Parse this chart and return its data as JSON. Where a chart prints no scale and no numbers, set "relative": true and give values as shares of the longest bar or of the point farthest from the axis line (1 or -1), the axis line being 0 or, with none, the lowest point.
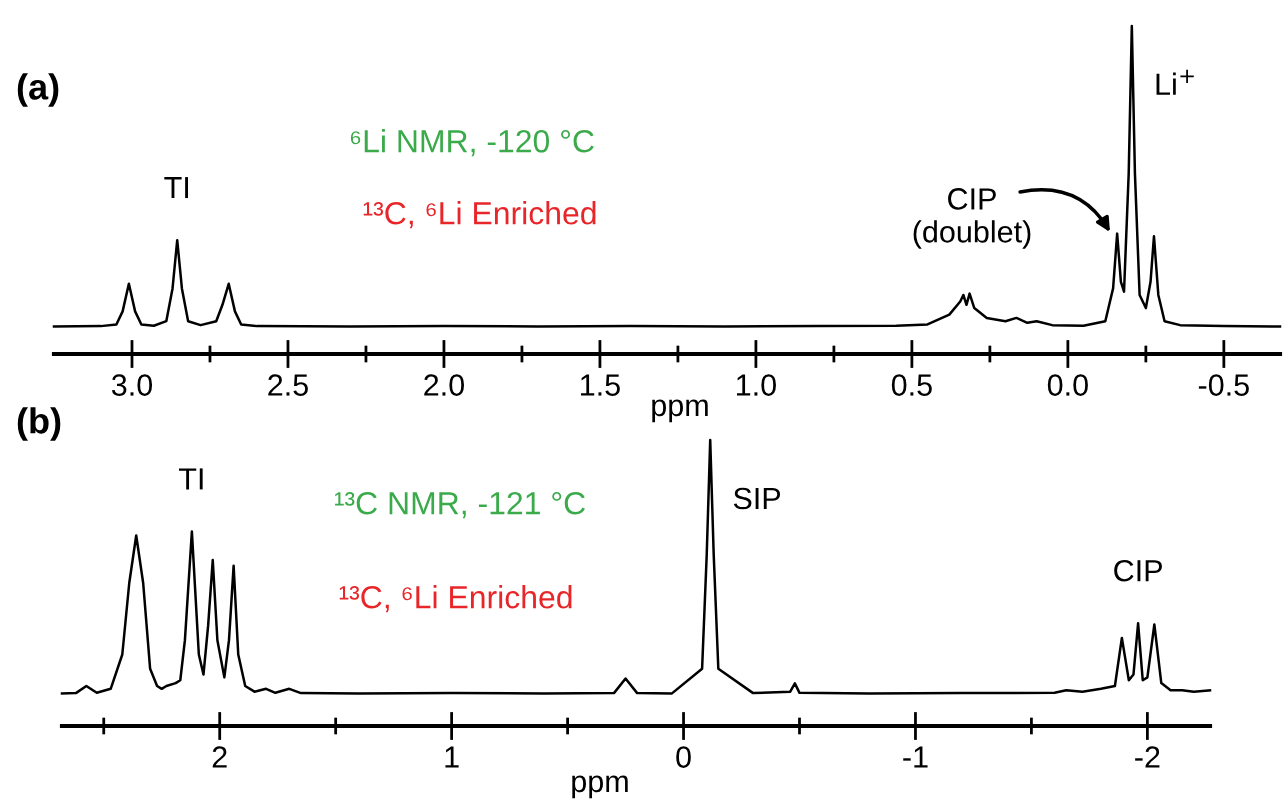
{
  "chart_data": [
    {
      "type": "line",
      "title": "(a)",
      "xlabel": "ppm",
      "relative": true,
      "tick_labels": "x",
      "grid": false,
      "legend": false,
      "xlim": [
        3.25,
        -0.68
      ],
      "xticks": [
        {
          "value": 3,
          "label": "3.0"
        },
        {
          "value": 2.75,
          "label": null
        },
        2.5,
        {
          "value": 2.25,
          "label": null
        },
        {
          "value": 2,
          "label": "2.0"
        },
        {
          "value": 1.75,
          "label": null
        },
        1.5,
        {
          "value": 1.25,
          "label": null
        },
        {
          "value": 1,
          "label": "1.0"
        },
        {
          "value": 0.75,
          "label": null
        },
        0.5,
        {
          "value": 0.25,
          "label": null
        },
        {
          "value": 0,
          "label": "0.0"
        },
        {
          "value": -0.25,
          "label": null
        },
        -0.5
      ],
      "annotations": [
        "⁶Li NMR, -120 °C",
        "¹³C, ⁶Li Enriched",
        {
          "text": "TI",
          "x": 2.855,
          "y": 0.347
        },
        "CIP\n(doublet)",
        {
          "text": "Li$^{+}$",
          "x": -0.205,
          "y": 1.0
        }
      ],
      "series": [
        {
          "color": "#000000",
          "x": [
            3.25,
            3.1,
            3.05,
            3.03,
            3.01,
            2.99,
            2.97,
            2.93,
            2.89,
            2.87,
            2.855,
            2.84,
            2.82,
            2.78,
            2.73,
            2.71,
            2.69,
            2.67,
            2.65,
            2.6,
            2.3,
            2.0,
            1.7,
            1.4,
            1.1,
            0.8,
            0.55,
            0.45,
            0.38,
            0.345,
            0.335,
            0.325,
            0.315,
            0.3,
            0.26,
            0.2,
            0.165,
            0.13,
            0.1,
            0.05,
            -0.05,
            -0.12,
            -0.145,
            -0.158,
            -0.17,
            -0.18,
            -0.195,
            -0.205,
            -0.215,
            -0.23,
            -0.25,
            -0.265,
            -0.276,
            -0.29,
            -0.31,
            -0.36,
            -0.5,
            -0.68
          ],
          "values": [
            0.084,
            0.085,
            0.09,
            0.13,
            0.214,
            0.13,
            0.09,
            0.086,
            0.1,
            0.2,
            0.347,
            0.2,
            0.1,
            0.088,
            0.1,
            0.15,
            0.214,
            0.13,
            0.09,
            0.085,
            0.084,
            0.085,
            0.084,
            0.085,
            0.084,
            0.085,
            0.086,
            0.09,
            0.12,
            0.16,
            0.18,
            0.15,
            0.184,
            0.14,
            0.11,
            0.1,
            0.11,
            0.095,
            0.1,
            0.088,
            0.086,
            0.1,
            0.2,
            0.367,
            0.22,
            0.19,
            0.55,
            1.0,
            0.55,
            0.18,
            0.14,
            0.22,
            0.359,
            0.18,
            0.1,
            0.088,
            0.085,
            0.084
          ]
        }
      ]
    },
    {
      "type": "line",
      "title": "(b)",
      "xlabel": "ppm",
      "relative": true,
      "tick_labels": "x",
      "grid": false,
      "legend": false,
      "xlim": [
        2.68,
        -2.27
      ],
      "xticks": [
        {
          "value": 2.5,
          "label": null
        },
        2,
        {
          "value": 1.5,
          "label": null
        },
        1,
        {
          "value": 0.5,
          "label": null
        },
        0,
        {
          "value": -0.5,
          "label": null
        },
        -1,
        {
          "value": -1.5,
          "label": null
        },
        -2
      ],
      "annotations": [
        "¹³C NMR, -121 °C",
        "¹³C, ⁶Li Enriched",
        {
          "text": "TI",
          "x": 2.12,
          "y": 0.68
        },
        {
          "text": "SIP",
          "x": -0.115,
          "y": 1.0
        },
        {
          "text": "CIP",
          "x": -1.96,
          "y": 0.359
        }
      ],
      "series": [
        {
          "color": "#000000",
          "x": [
            2.68,
            2.62,
            2.575,
            2.53,
            2.47,
            2.42,
            2.39,
            2.36,
            2.33,
            2.3,
            2.27,
            2.25,
            2.23,
            2.19,
            2.17,
            2.15,
            2.12,
            2.09,
            2.07,
            2.05,
            2.03,
            2.01,
            1.98,
            1.96,
            1.94,
            1.92,
            1.89,
            1.85,
            1.8,
            1.76,
            1.7,
            1.65,
            1.4,
            1.0,
            0.6,
            0.3,
            0.25,
            0.2,
            0.05,
            -0.08,
            -0.1,
            -0.115,
            -0.13,
            -0.15,
            -0.3,
            -0.46,
            -0.48,
            -0.5,
            -0.8,
            -1.2,
            -1.6,
            -1.65,
            -1.72,
            -1.8,
            -1.86,
            -1.89,
            -1.92,
            -1.94,
            -1.96,
            -1.98,
            -2.0,
            -2.03,
            -2.06,
            -2.1,
            -2.15,
            -2.2,
            -2.27
          ],
          "values": [
            0.114,
            0.115,
            0.14,
            0.116,
            0.13,
            0.25,
            0.5,
            0.666,
            0.5,
            0.2,
            0.14,
            0.13,
            0.14,
            0.15,
            0.16,
            0.3,
            0.68,
            0.25,
            0.18,
            0.35,
            0.58,
            0.3,
            0.17,
            0.3,
            0.56,
            0.25,
            0.14,
            0.12,
            0.13,
            0.116,
            0.13,
            0.115,
            0.114,
            0.115,
            0.114,
            0.115,
            0.166,
            0.115,
            0.114,
            0.2,
            0.6,
            1.0,
            0.6,
            0.2,
            0.115,
            0.12,
            0.149,
            0.116,
            0.114,
            0.115,
            0.116,
            0.125,
            0.12,
            0.13,
            0.14,
            0.308,
            0.16,
            0.18,
            0.359,
            0.16,
            0.17,
            0.355,
            0.15,
            0.125,
            0.125,
            0.12,
            0.125
          ]
        }
      ]
    }
  ]
}
